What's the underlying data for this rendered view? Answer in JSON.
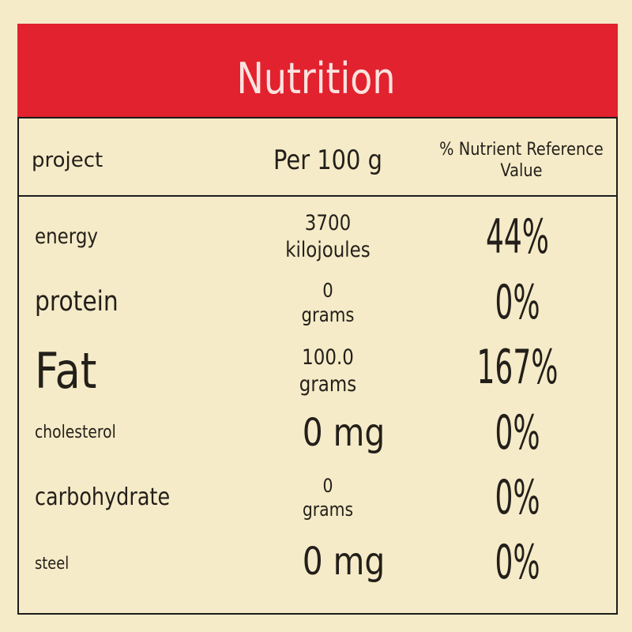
{
  "header": {
    "title": "Nutrition"
  },
  "table": {
    "columns": [
      "project",
      "Per 100 g",
      "% Nutrient Reference Value"
    ],
    "rows": [
      {
        "name": "energy",
        "amount": [
          "3700",
          "kilojoules"
        ],
        "nrv": "44%"
      },
      {
        "name": "protein",
        "amount": [
          "0",
          "grams"
        ],
        "nrv": "0%"
      },
      {
        "name": "Fat",
        "amount": [
          "100.0",
          "grams"
        ],
        "nrv": "167%"
      },
      {
        "name": "cholesterol",
        "amount": [
          "0 mg"
        ],
        "nrv": "0%"
      },
      {
        "name": "carbohydrate",
        "amount": [
          "0",
          "grams"
        ],
        "nrv": "0%"
      },
      {
        "name": "steel",
        "amount": [
          "0 mg"
        ],
        "nrv": "0%"
      }
    ]
  }
}
